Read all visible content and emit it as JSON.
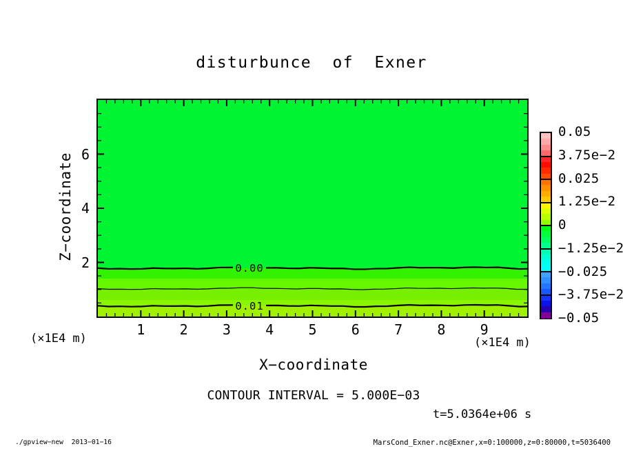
{
  "title": "disturbunce  of  Exner",
  "axes": {
    "x_label": "X−coordinate",
    "y_label": "Z−coordinate",
    "x_ticks": [
      "1",
      "2",
      "3",
      "4",
      "5",
      "6",
      "7",
      "8",
      "9"
    ],
    "y_ticks": [
      "2",
      "4",
      "6"
    ],
    "x_unit_left": "(×1E4 m)",
    "x_unit_right": "(×1E4 m)"
  },
  "annotations": {
    "contour_interval": "CONTOUR INTERVAL = 5.000E−03",
    "time": "t=5.0364e+06 s"
  },
  "footer": {
    "left": "./gpview−new  2013−01−16",
    "right": "MarsCond_Exner.nc@Exner,x=0:100000,z=0:80000,t=5036400"
  },
  "colorbar": {
    "tick_labels": [
      "0.05",
      "3.75e−2",
      "0.025",
      "1.25e−2",
      "0",
      "−1.25e−2",
      "−0.025",
      "−3.75e−2",
      "−0.05"
    ],
    "colors": [
      "#ffc0c0",
      "#ffa8a8",
      "#ff8c8c",
      "#ff6868",
      "#ff2828",
      "#ff0c00",
      "#ff2c00",
      "#ff4c00",
      "#ff7400",
      "#ff9000",
      "#ffac00",
      "#ffc800",
      "#fff400",
      "#dcff00",
      "#baff00",
      "#94ff00",
      "#00ff14",
      "#00ff3c",
      "#00ff64",
      "#00ff8c",
      "#00ffb4",
      "#00ffd4",
      "#00ffec",
      "#00fffc",
      "#40a4ff",
      "#3090ff",
      "#2478ff",
      "#1858ff",
      "#1434ff",
      "#0a14e8",
      "#2800b4",
      "#800096"
    ]
  },
  "chart_data": {
    "type": "contour",
    "title": "disturbunce of Exner",
    "xlabel": "X-coordinate",
    "ylabel": "Z-coordinate",
    "axis_unit": "x1E4 m",
    "x_range_m": [
      0,
      100000
    ],
    "z_range_m": [
      0,
      80000
    ],
    "x_tick_values": [
      1,
      2,
      3,
      4,
      5,
      6,
      7,
      8,
      9
    ],
    "y_tick_values": [
      2,
      4,
      6
    ],
    "x_minor_step": 0.2,
    "y_minor_step": 0.5,
    "contour_interval": 0.005,
    "colorbar_tick_values": [
      0.05,
      0.0375,
      0.025,
      0.0125,
      0,
      -0.0125,
      -0.025,
      -0.0375,
      -0.05
    ],
    "time_label": "t=5.0364e+06 s",
    "time_seconds": 5036400,
    "field_description": "Exner function disturbance: uniform near 0 (green) above z≈1.8e4 m, increasing toward the surface to ≈0.015 at z=0; nearly horizontal wavy contour lines.",
    "contour_lines": [
      {
        "label": "0.00",
        "z_m": 17900,
        "labeled": true,
        "width": 2.2,
        "amp": 1.0
      },
      {
        "label": "0.005",
        "z_m": 10300,
        "labeled": false,
        "width": 1.2,
        "amp": 0.8
      },
      {
        "label": "0.01",
        "z_m": 4000,
        "labeled": true,
        "width": 2.2,
        "amp": 1.0
      }
    ],
    "field_bands": [
      {
        "z_top": 80000,
        "z_bot": 17900,
        "color": "#00f432"
      },
      {
        "z_top": 17900,
        "z_bot": 14100,
        "color": "#33f200"
      },
      {
        "z_top": 14100,
        "z_bot": 10300,
        "color": "#66f600"
      },
      {
        "z_top": 10300,
        "z_bot": 6040,
        "color": "#77ef00"
      },
      {
        "z_top": 6040,
        "z_bot": 4020,
        "color": "#8af500"
      },
      {
        "z_top": 4020,
        "z_bot": 0,
        "color": "#a0f000"
      }
    ]
  }
}
